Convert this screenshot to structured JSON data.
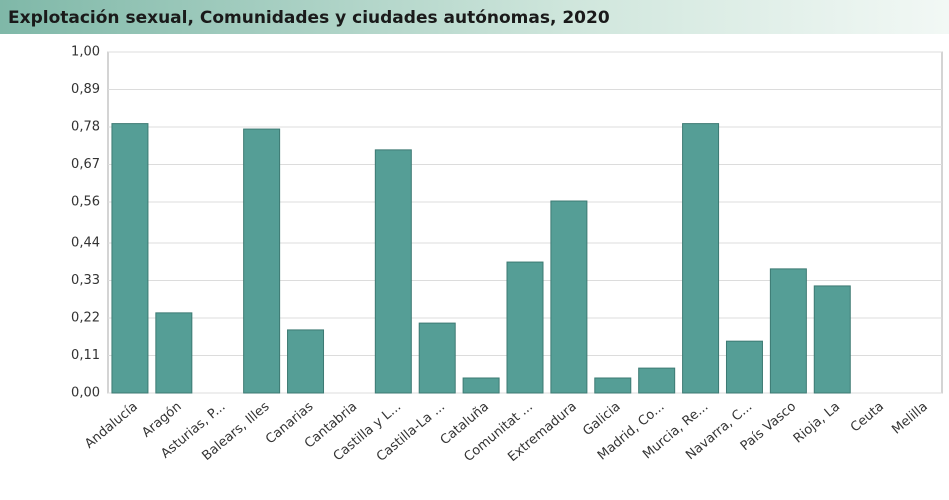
{
  "chart_data": {
    "type": "bar",
    "title": "Explotación sexual, Comunidades y ciudades autónomas, 2020",
    "categories": [
      "Andalucía",
      "Aragón",
      "Asturias, P...",
      "Balears, Illes",
      "Canarias",
      "Cantabria",
      "Castilla y L...",
      "Castilla-La ...",
      "Cataluña",
      "Comunitat ...",
      "Extremadura",
      "Galicia",
      "Madrid, Co...",
      "Murcia, Re...",
      "Navarra, C...",
      "País Vasco",
      "Rioja, La",
      "Ceuta",
      "Melilla"
    ],
    "values": [
      0.79,
      0.235,
      0,
      0.774,
      0.185,
      0,
      0.713,
      0.205,
      0.044,
      0.384,
      0.563,
      0.044,
      0.073,
      0.79,
      0.152,
      0.364,
      0.314,
      0,
      0
    ],
    "color": "#559e96",
    "ylim": [
      0,
      1
    ],
    "yticks": [
      {
        "value": 0,
        "label": "0,00"
      },
      {
        "value": 0.11,
        "label": "0,11"
      },
      {
        "value": 0.22,
        "label": "0,22"
      },
      {
        "value": 0.33,
        "label": "0,33"
      },
      {
        "value": 0.44,
        "label": "0,44"
      },
      {
        "value": 0.56,
        "label": "0,56"
      },
      {
        "value": 0.67,
        "label": "0,67"
      },
      {
        "value": 0.78,
        "label": "0,78"
      },
      {
        "value": 0.89,
        "label": "0,89"
      },
      {
        "value": 1,
        "label": "1,00"
      }
    ],
    "grid": true
  }
}
